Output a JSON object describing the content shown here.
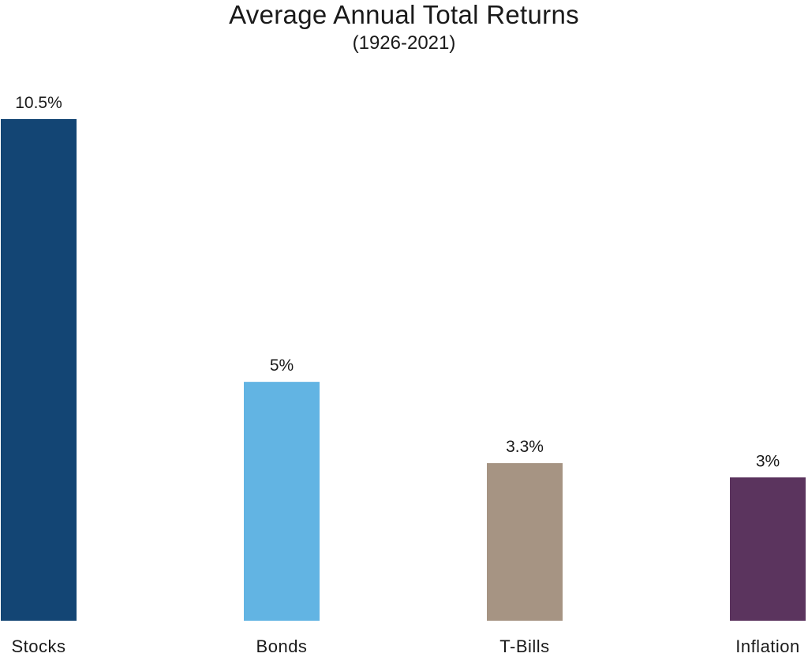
{
  "chart_data": {
    "type": "bar",
    "title": "Average Annual Total Returns",
    "subtitle": "(1926-2021)",
    "xlabel": "",
    "ylabel": "",
    "categories": [
      "Stocks",
      "Bonds",
      "T-Bills",
      "Inflation"
    ],
    "values": [
      10.5,
      5,
      3.3,
      3
    ],
    "data_labels": [
      "10.5%",
      "5%",
      "3.3%",
      "3%"
    ],
    "colors": [
      "#134574",
      "#62b4e3",
      "#a69483",
      "#5b345e"
    ],
    "ylim": [
      0,
      10.5
    ],
    "grid": false,
    "legend": "none"
  }
}
